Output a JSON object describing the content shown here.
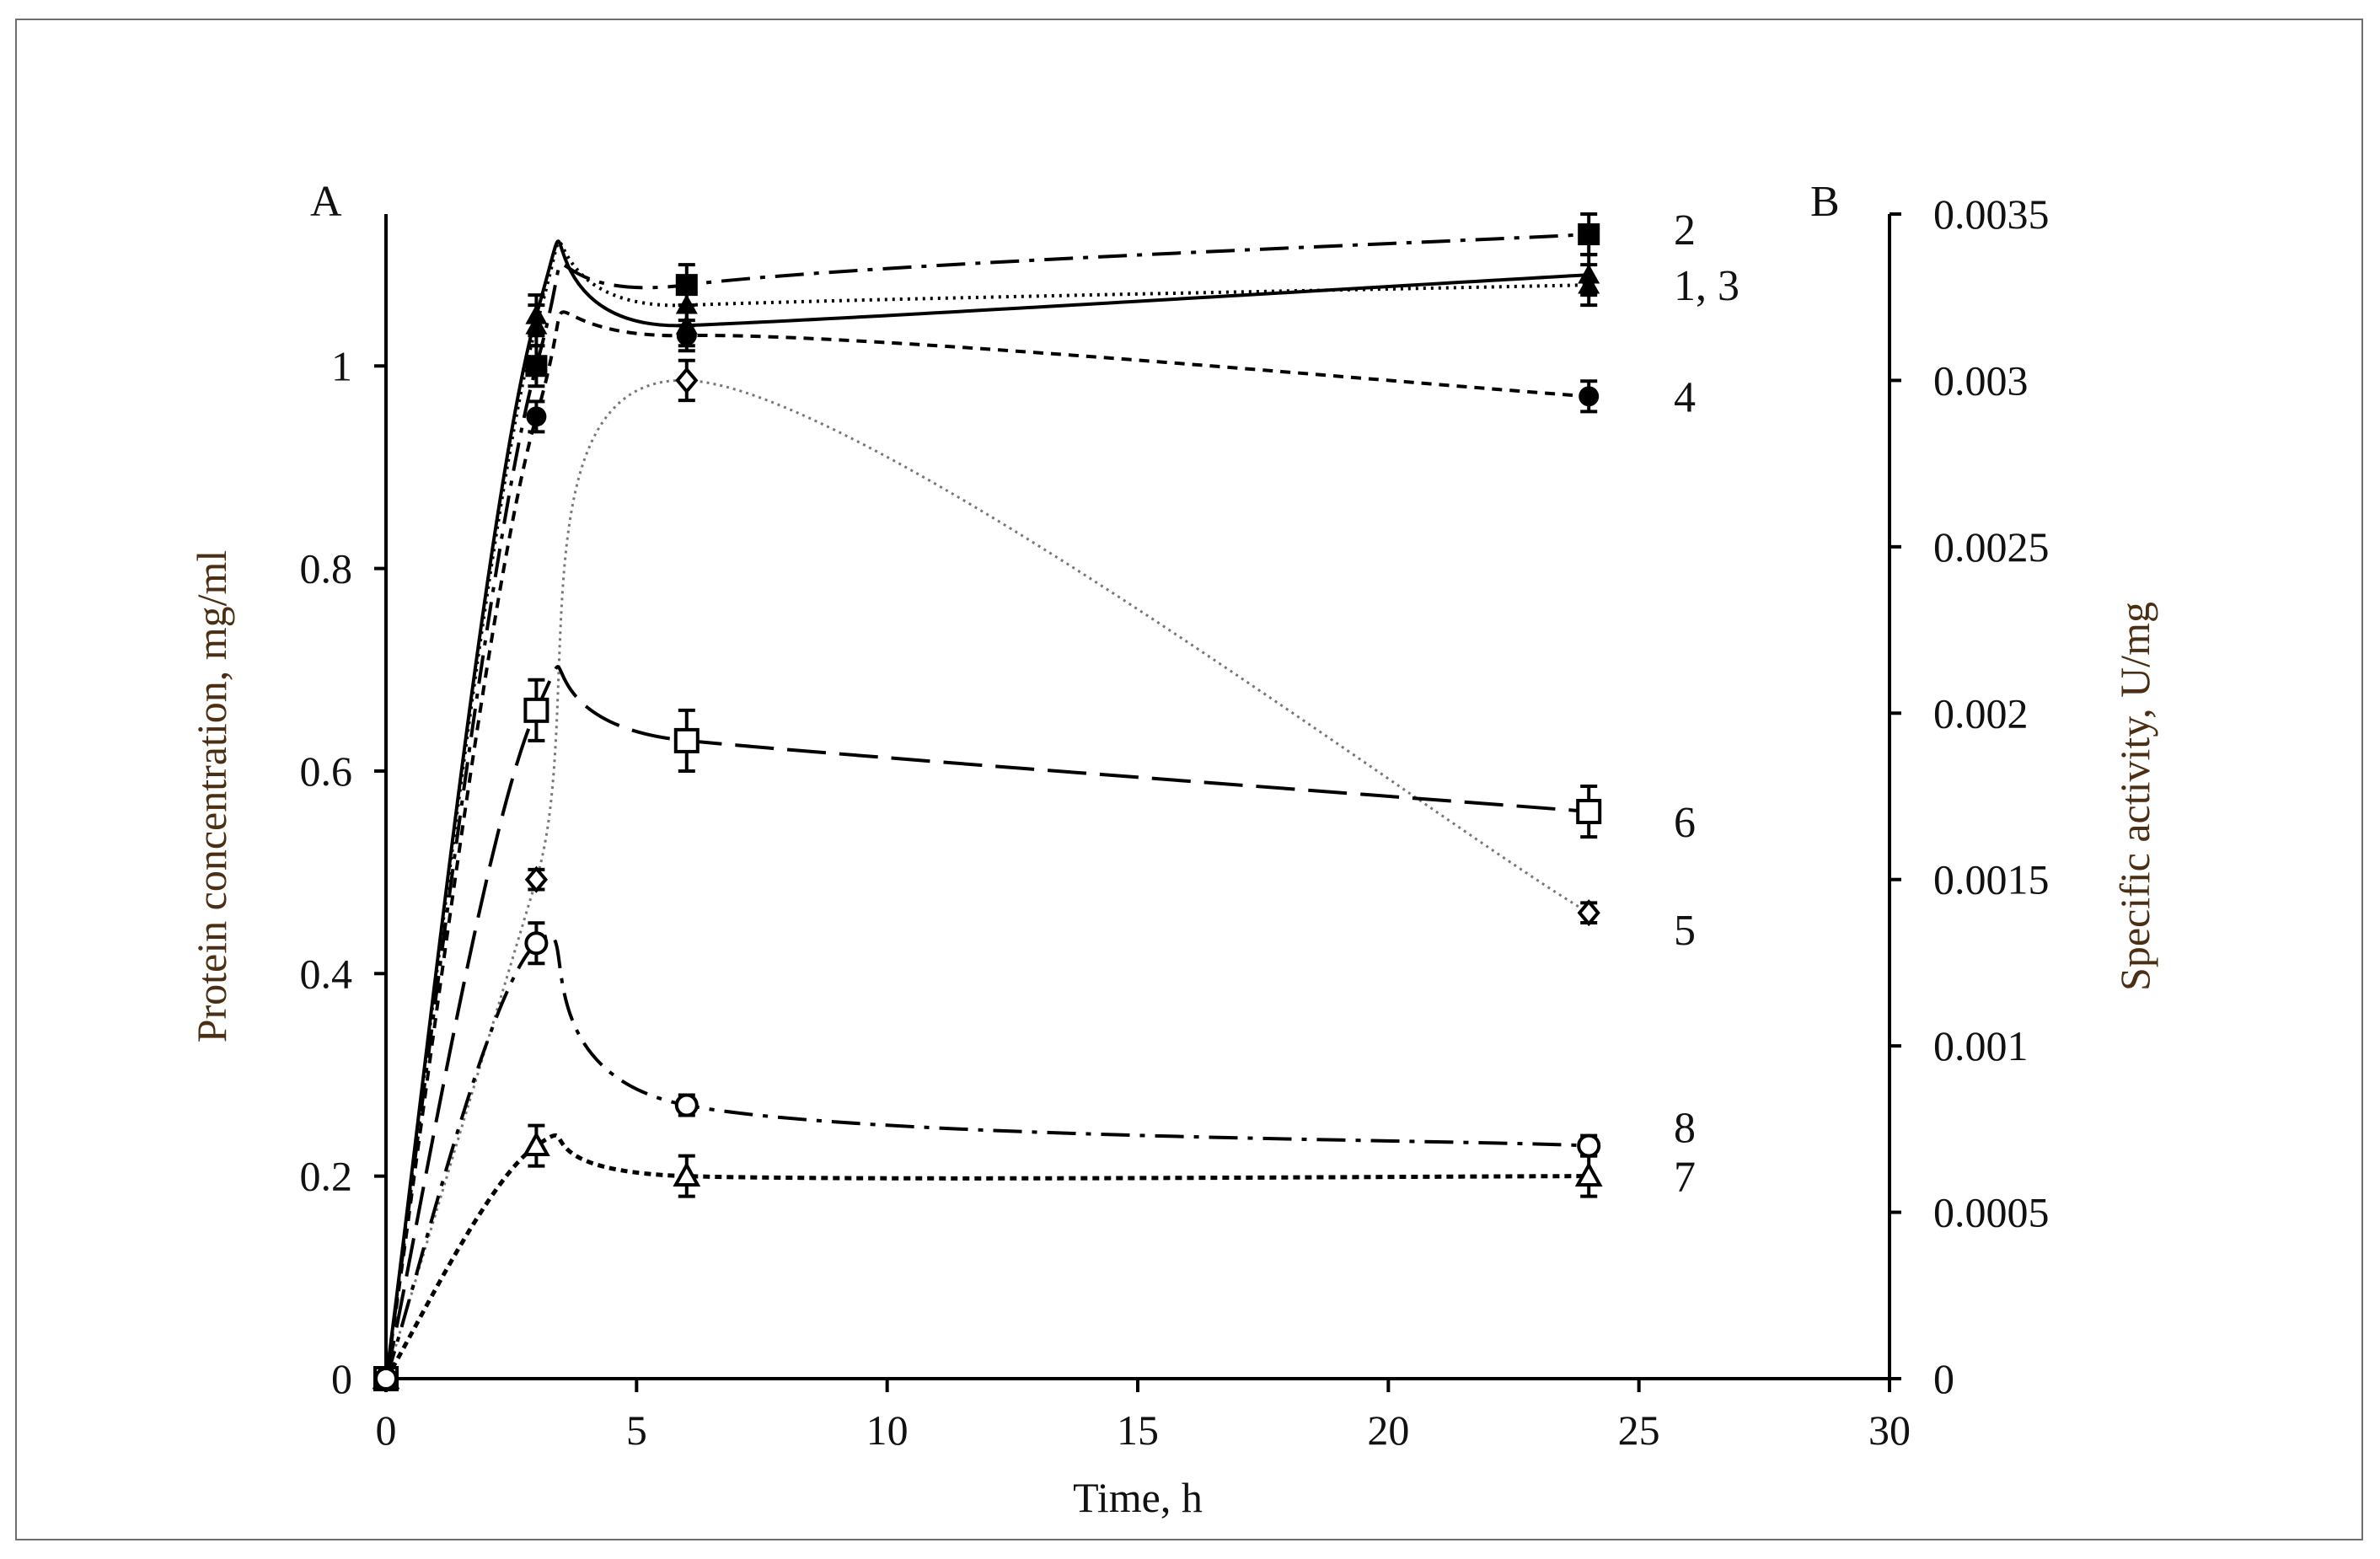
{
  "chart_data": {
    "type": "line",
    "panel_labels": {
      "left": "A",
      "right": "B"
    },
    "xlabel": "Time, h",
    "ylabel": "Protein concentration, mg/ml",
    "y2label": "Specific activity, U/mg",
    "xlim": [
      0,
      30
    ],
    "ylim": [
      0,
      1.15
    ],
    "y2lim": [
      0,
      0.0035
    ],
    "x_ticks": [
      "0",
      "5",
      "10",
      "15",
      "20",
      "25",
      "30"
    ],
    "y_ticks": [
      "0",
      "0.2",
      "0.4",
      "0.6",
      "0.8",
      "1"
    ],
    "y2_ticks": [
      "0",
      "0.0005",
      "0.001",
      "0.0015",
      "0.002",
      "0.0025",
      "0.003",
      "0.0035"
    ],
    "grid": false,
    "x": [
      0,
      3,
      6,
      24
    ],
    "series": [
      {
        "name": "1",
        "label": "1, 3",
        "axis": "left",
        "marker": "filled-triangle",
        "line": "solid",
        "color": "#000000",
        "values": [
          0,
          1.05,
          1.04,
          1.09
        ],
        "err": [
          0,
          0.02,
          0.02,
          0.02
        ]
      },
      {
        "name": "2",
        "label": "2",
        "axis": "left",
        "marker": "filled-square",
        "line": "dashdot",
        "color": "#000000",
        "values": [
          0,
          1.0,
          1.08,
          1.13
        ],
        "err": [
          0,
          0.02,
          0.02,
          0.02
        ]
      },
      {
        "name": "3",
        "label": "",
        "axis": "left",
        "marker": "filled-triangle",
        "line": "dotted",
        "color": "#000000",
        "values": [
          0,
          1.04,
          1.06,
          1.08
        ],
        "err": [
          0,
          0.02,
          0.02,
          0.02
        ]
      },
      {
        "name": "4",
        "label": "4",
        "axis": "left",
        "marker": "filled-circle",
        "line": "dashed-short",
        "color": "#000000",
        "values": [
          0,
          0.95,
          1.03,
          0.97
        ],
        "err": [
          0,
          0.015,
          0.015,
          0.015
        ]
      },
      {
        "name": "5",
        "label": "5",
        "axis": "right",
        "marker": "open-diamond",
        "line": "dotted-grey",
        "color": "#777777",
        "values": [
          0,
          0.0015,
          0.003,
          0.0014
        ],
        "err": [
          0,
          3e-05,
          6e-05,
          3e-05
        ]
      },
      {
        "name": "6",
        "label": "6",
        "axis": "left",
        "marker": "open-square",
        "line": "dashed-long",
        "color": "#000000",
        "values": [
          0,
          0.66,
          0.63,
          0.56
        ],
        "err": [
          0,
          0.03,
          0.03,
          0.025
        ]
      },
      {
        "name": "7",
        "label": "7",
        "axis": "left",
        "marker": "open-triangle",
        "line": "dotted-dense",
        "color": "#000000",
        "values": [
          0,
          0.23,
          0.2,
          0.2
        ],
        "err": [
          0,
          0.02,
          0.02,
          0.02
        ]
      },
      {
        "name": "8",
        "label": "8",
        "axis": "left",
        "marker": "open-circle",
        "line": "dashdot",
        "color": "#000000",
        "values": [
          0,
          0.43,
          0.27,
          0.23
        ],
        "err": [
          0,
          0.02,
          0.01,
          0.01
        ]
      }
    ]
  }
}
